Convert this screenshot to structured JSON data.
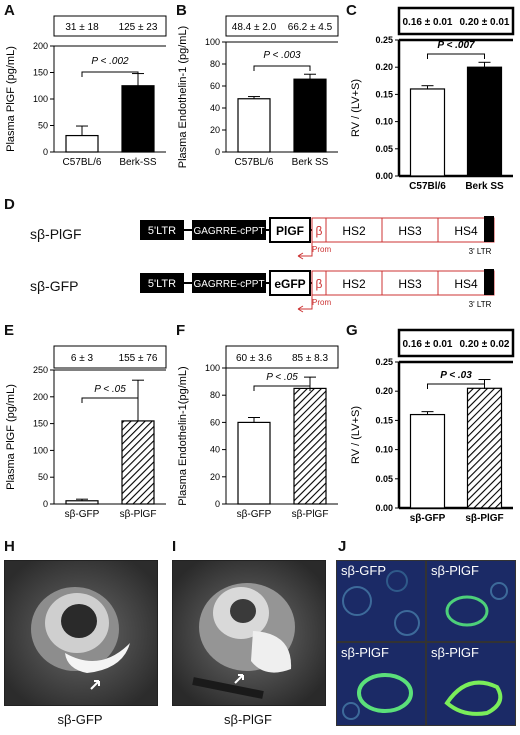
{
  "panels": {
    "A": {
      "letter": "A",
      "ylabel": "Plasma PlGF (pg/mL)",
      "stats": [
        "31 ± 18",
        "125 ± 23"
      ],
      "pval": "P < .002",
      "chart_data": {
        "type": "bar",
        "categories": [
          "C57BL/6",
          "Berk-SS"
        ],
        "values": [
          31,
          125
        ],
        "errors": [
          18,
          23
        ],
        "ylim": [
          0,
          200
        ],
        "yticks": [
          "0",
          "50",
          "100",
          "150",
          "200"
        ],
        "fills": [
          "white",
          "black"
        ]
      }
    },
    "B": {
      "letter": "B",
      "ylabel": "Plasma Endothelin-1 (pg/mL)",
      "stats": [
        "48.4 ± 2.0",
        "66.2 ± 4.5"
      ],
      "pval": "P < .003",
      "chart_data": {
        "type": "bar",
        "categories": [
          "C57BL/6",
          "Berk SS"
        ],
        "values": [
          48.4,
          66.2
        ],
        "errors": [
          2.0,
          4.5
        ],
        "ylim": [
          0,
          100
        ],
        "yticks": [
          "0",
          "20",
          "40",
          "60",
          "80",
          "100"
        ],
        "fills": [
          "white",
          "black"
        ]
      }
    },
    "C": {
      "letter": "C",
      "ylabel": "RV / (LV+S)",
      "stats": [
        "0.16 ± 0.01",
        "0.20 ± 0.01"
      ],
      "pval": "P < .007",
      "chart_data": {
        "type": "bar",
        "categories": [
          "C57Bl/6",
          "Berk SS"
        ],
        "values": [
          0.16,
          0.2
        ],
        "errors": [
          0.006,
          0.009
        ],
        "ylim": [
          0,
          0.25
        ],
        "yticks": [
          "0.00",
          "0.05",
          "0.10",
          "0.15",
          "0.20",
          "0.25"
        ],
        "fills": [
          "white",
          "black"
        ]
      }
    },
    "E": {
      "letter": "E",
      "ylabel": "Plasma PlGF (pg/mL)",
      "stats": [
        "6 ± 3",
        "155 ± 76"
      ],
      "pval": "P < .05",
      "chart_data": {
        "type": "bar",
        "categories": [
          "sβ-GFP",
          "sβ-PlGF"
        ],
        "values": [
          6,
          155
        ],
        "errors": [
          3,
          76
        ],
        "ylim": [
          0,
          250
        ],
        "yticks": [
          "0",
          "50",
          "100",
          "150",
          "200",
          "250"
        ],
        "fills": [
          "white",
          "hatch"
        ]
      }
    },
    "F": {
      "letter": "F",
      "ylabel": "Plasma Endothelin-1(pg/mL)",
      "stats": [
        "60 ± 3.6",
        "85 ± 8.3"
      ],
      "pval": "P < .05",
      "chart_data": {
        "type": "bar",
        "categories": [
          "sβ-GFP",
          "sβ-PlGF"
        ],
        "values": [
          60,
          85
        ],
        "errors": [
          3.6,
          8.3
        ],
        "ylim": [
          0,
          100
        ],
        "yticks": [
          "0",
          "20",
          "40",
          "60",
          "80",
          "100"
        ],
        "fills": [
          "white",
          "hatch"
        ]
      }
    },
    "G": {
      "letter": "G",
      "ylabel": "RV / (LV+S)",
      "stats": [
        "0.16 ± 0.01",
        "0.20 ± 0.02"
      ],
      "pval": "P < .03",
      "chart_data": {
        "type": "bar",
        "categories": [
          "sβ-GFP",
          "sβ-PlGF"
        ],
        "values": [
          0.16,
          0.205
        ],
        "errors": [
          0.005,
          0.015
        ],
        "ylim": [
          0,
          0.25
        ],
        "yticks": [
          "0.00",
          "0.05",
          "0.10",
          "0.15",
          "0.20",
          "0.25"
        ],
        "fills": [
          "white",
          "hatch"
        ]
      }
    }
  },
  "construct": {
    "letter": "D",
    "rows": [
      {
        "label": "sβ-PlGF",
        "ltr5": "5'LTR",
        "gag": "GAGRRE-cPPT",
        "gene": "PlGF",
        "beta": "β",
        "hs": [
          "HS2",
          "HS3",
          "HS4"
        ],
        "ltr3": "3' LTR",
        "prom": "Prom"
      },
      {
        "label": "sβ-GFP",
        "ltr5": "5'LTR",
        "gag": "GAGRRE-cPPT",
        "gene": "eGFP",
        "beta": "β",
        "hs": [
          "HS2",
          "HS3",
          "HS4"
        ],
        "ltr3": "3' LTR",
        "prom": "Prom"
      }
    ],
    "colors": {
      "element": "#c33",
      "box": "#000"
    }
  },
  "images": {
    "H": {
      "letter": "H",
      "caption": "sβ-GFP"
    },
    "I": {
      "letter": "I",
      "caption": "sβ-PlGF"
    },
    "J": {
      "letter": "J",
      "tiles": [
        "sβ-GFP",
        "sβ-PlGF",
        "sβ-PlGF",
        "sβ-PlGF"
      ]
    }
  }
}
